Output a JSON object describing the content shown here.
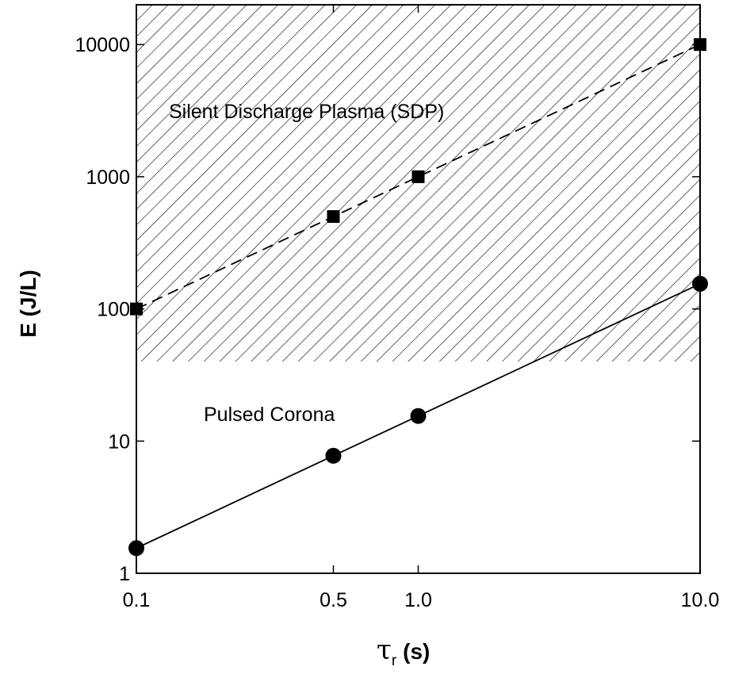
{
  "chart_data": {
    "type": "line",
    "x_scale": "log",
    "y_scale": "log",
    "xlim": [
      0.1,
      10.0
    ],
    "ylim": [
      1,
      20000
    ],
    "x_ticks": [
      {
        "value": 0.1,
        "label": "0.1"
      },
      {
        "value": 0.5,
        "label": "0.5"
      },
      {
        "value": 1.0,
        "label": "1.0"
      },
      {
        "value": 10.0,
        "label": "10.0"
      }
    ],
    "y_ticks": [
      {
        "value": 1,
        "label": "1"
      },
      {
        "value": 10,
        "label": "10"
      },
      {
        "value": 100,
        "label": "100"
      },
      {
        "value": 1000,
        "label": "1000"
      },
      {
        "value": 10000,
        "label": "10000"
      }
    ],
    "xlabel_main": "τ",
    "xlabel_sub": "r",
    "xlabel_unit": "(s)",
    "ylabel": "E (J/L)",
    "grid": false,
    "shaded_region": {
      "label": "Silent Discharge Plasma (SDP)",
      "y_from": 40,
      "y_to": 20000,
      "pattern": "diagonal-hatch"
    },
    "series": [
      {
        "marker": "square",
        "line_style": "dashed",
        "color": "#000000",
        "x": [
          0.1,
          0.5,
          1.0,
          10.0
        ],
        "y": [
          100,
          500,
          1000,
          10000
        ]
      },
      {
        "name": "Pulsed Corona",
        "marker": "circle",
        "line_style": "solid",
        "color": "#000000",
        "x": [
          0.1,
          0.5,
          1.0,
          10.0
        ],
        "y": [
          1.55,
          7.75,
          15.5,
          155
        ]
      }
    ]
  }
}
